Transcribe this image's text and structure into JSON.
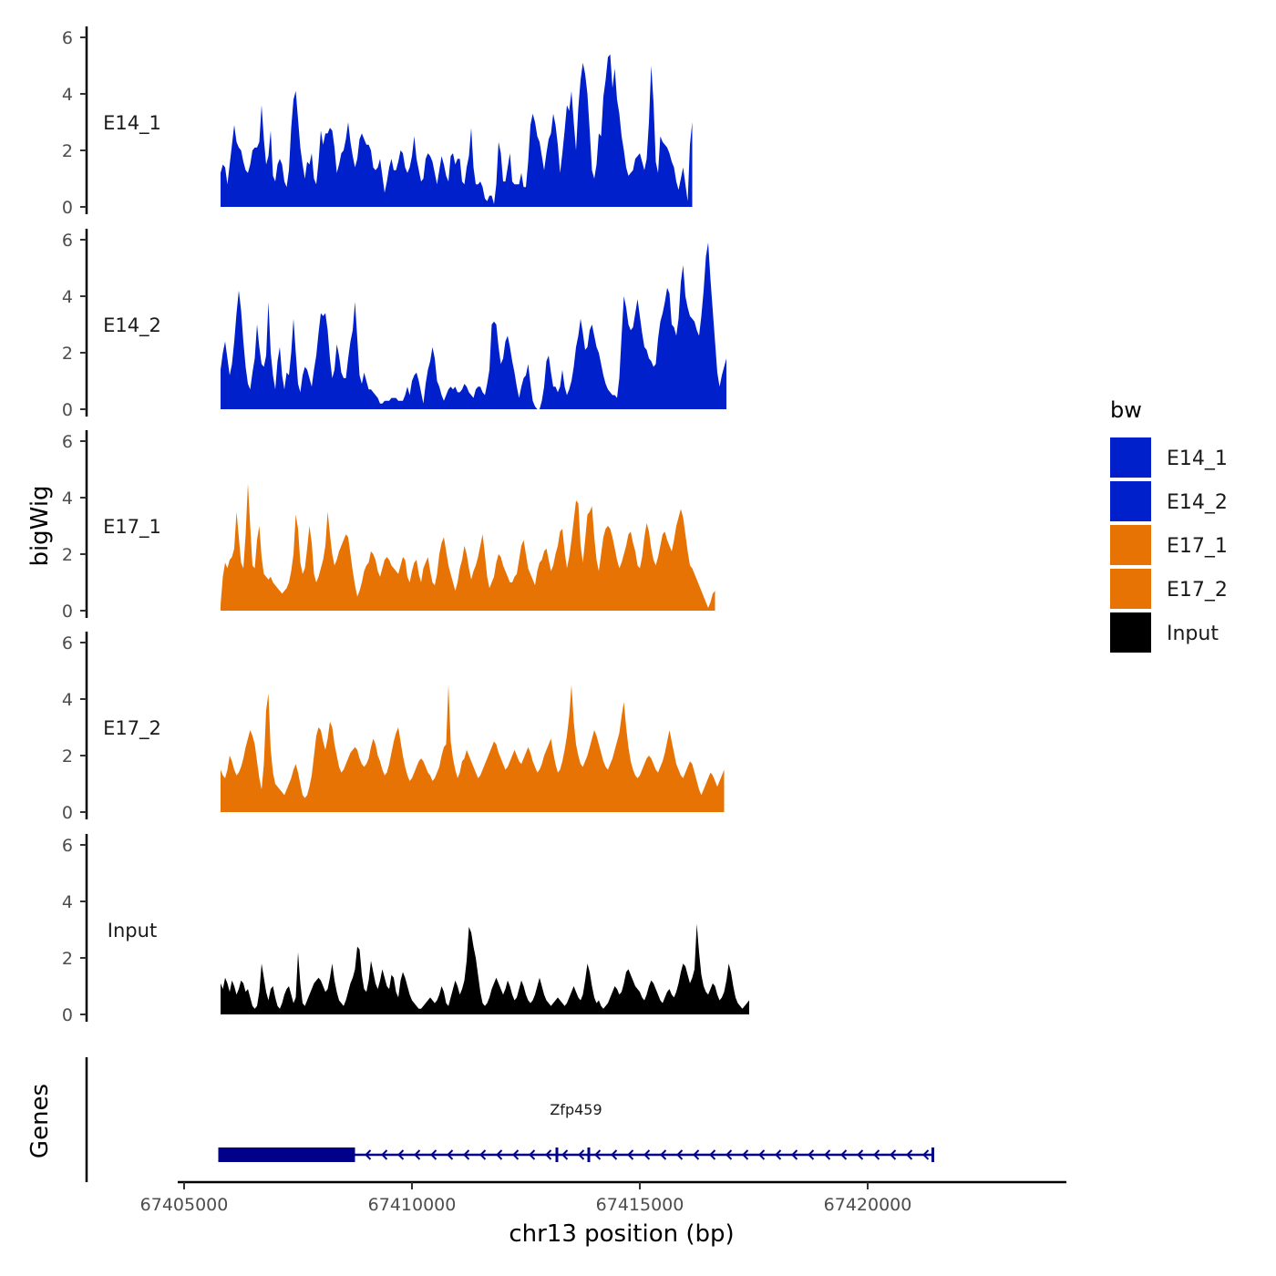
{
  "chart_data": {
    "type": "area",
    "ylabel": "bigWig",
    "xlabel": "chr13 position (bp)",
    "ylim": [
      0,
      6
    ],
    "y_ticks": [
      "0",
      "2",
      "4",
      "6"
    ],
    "xlim": [
      67404800,
      67424300
    ],
    "x_ticks": [
      {
        "value": 67405000,
        "label": "67405000"
      },
      {
        "value": 67410000,
        "label": "67410000"
      },
      {
        "value": 67415000,
        "label": "67415000"
      },
      {
        "value": 67420000,
        "label": "67420000"
      }
    ],
    "x_start": 67405800,
    "x_step": 50,
    "legend": {
      "title": "bw",
      "position": "right",
      "entries": [
        {
          "label": "E14_1",
          "color": "#0020CC"
        },
        {
          "label": "E14_2",
          "color": "#0020CC"
        },
        {
          "label": "E17_1",
          "color": "#E87305"
        },
        {
          "label": "E17_2",
          "color": "#E87305"
        },
        {
          "label": "Input",
          "color": "#000000"
        }
      ]
    },
    "series": [
      {
        "name": "E14_1",
        "color": "#0020CC",
        "values": [
          1.2,
          1.5,
          1.4,
          0.8,
          1.5,
          2.2,
          2.9,
          2.3,
          2.1,
          2.0,
          1.6,
          1.3,
          1.2,
          1.5,
          2.0,
          2.1,
          2.1,
          2.3,
          3.6,
          2.4,
          1.5,
          1.8,
          2.7,
          1.1,
          0.9,
          1.5,
          1.7,
          1.5,
          0.9,
          0.7,
          1.3,
          2.8,
          3.8,
          4.1,
          3.1,
          2.1,
          1.5,
          1.0,
          1.6,
          1.5,
          1.9,
          1.0,
          0.8,
          1.6,
          2.7,
          2.2,
          2.6,
          2.6,
          2.8,
          2.7,
          2.1,
          1.2,
          1.5,
          1.9,
          2.0,
          2.4,
          3.0,
          2.3,
          1.8,
          1.4,
          1.7,
          2.4,
          2.6,
          2.4,
          2.2,
          2.2,
          2.0,
          1.4,
          1.3,
          1.4,
          1.7,
          1.1,
          0.5,
          0.9,
          1.4,
          1.7,
          1.3,
          1.3,
          1.6,
          2.0,
          1.9,
          1.4,
          1.2,
          1.4,
          1.8,
          2.5,
          1.7,
          1.3,
          0.9,
          1.0,
          1.7,
          1.9,
          1.8,
          1.6,
          1.2,
          0.8,
          1.3,
          1.8,
          1.5,
          1.1,
          0.9,
          1.8,
          1.9,
          1.5,
          1.7,
          1.7,
          0.9,
          0.8,
          1.4,
          1.8,
          2.8,
          1.4,
          0.8,
          0.8,
          0.9,
          0.7,
          0.3,
          0.2,
          0.4,
          0.4,
          0.1,
          0.8,
          2.3,
          1.9,
          0.9,
          0.9,
          1.4,
          1.9,
          0.9,
          0.8,
          0.8,
          0.8,
          1.2,
          0.7,
          0.7,
          1.6,
          2.9,
          3.3,
          3.0,
          2.5,
          2.3,
          1.8,
          1.3,
          1.9,
          2.4,
          2.6,
          3.3,
          2.9,
          2.2,
          1.2,
          1.9,
          2.7,
          3.6,
          3.4,
          4.1,
          3.0,
          2.0,
          3.5,
          4.5,
          5.1,
          4.7,
          4.0,
          2.7,
          1.3,
          1.0,
          1.5,
          2.6,
          2.5,
          3.9,
          4.5,
          5.3,
          5.4,
          4.2,
          4.9,
          3.8,
          3.3,
          2.5,
          2.0,
          1.4,
          1.1,
          1.2,
          1.3,
          1.7,
          1.8,
          1.9,
          1.6,
          1.3,
          1.7,
          3.0,
          5.0,
          3.7,
          1.6,
          1.2,
          2.5,
          2.3,
          2.2,
          2.1,
          1.9,
          1.6,
          1.4,
          0.9,
          0.6,
          1.0,
          1.4,
          0.8,
          0.2,
          2.2,
          3.0
        ]
      },
      {
        "name": "E14_2",
        "color": "#0020CC",
        "values": [
          1.4,
          2.0,
          2.4,
          1.8,
          1.2,
          1.6,
          2.4,
          3.4,
          4.2,
          3.5,
          2.4,
          1.5,
          0.9,
          0.7,
          1.3,
          1.8,
          3.0,
          2.2,
          1.6,
          1.5,
          1.9,
          3.8,
          2.0,
          1.2,
          0.7,
          1.7,
          2.2,
          1.2,
          0.7,
          1.3,
          1.2,
          2.0,
          3.2,
          2.0,
          0.9,
          0.6,
          1.2,
          1.5,
          1.4,
          1.1,
          0.8,
          1.4,
          1.9,
          2.7,
          3.4,
          3.3,
          3.4,
          2.8,
          1.8,
          1.1,
          1.4,
          2.3,
          1.9,
          1.3,
          1.1,
          1.1,
          1.8,
          2.4,
          2.8,
          3.8,
          2.5,
          1.2,
          0.9,
          1.3,
          1.0,
          0.7,
          0.7,
          0.6,
          0.5,
          0.4,
          0.2,
          0.2,
          0.3,
          0.3,
          0.3,
          0.4,
          0.4,
          0.4,
          0.3,
          0.3,
          0.3,
          0.5,
          0.8,
          0.5,
          1.0,
          1.2,
          1.3,
          1.0,
          0.6,
          0.2,
          0.9,
          1.4,
          1.7,
          2.2,
          1.8,
          1.0,
          0.8,
          0.5,
          0.3,
          0.5,
          0.7,
          0.8,
          0.7,
          0.8,
          0.6,
          0.6,
          0.7,
          0.9,
          0.8,
          0.6,
          0.5,
          0.4,
          0.7,
          0.8,
          0.8,
          0.6,
          0.5,
          0.9,
          1.4,
          3.0,
          3.1,
          3.0,
          2.2,
          1.6,
          1.8,
          2.4,
          2.6,
          2.2,
          1.7,
          1.3,
          0.8,
          0.4,
          0.8,
          1.1,
          1.2,
          1.6,
          0.9,
          0.3,
          0.1,
          0.0,
          0.0,
          0.3,
          0.8,
          1.7,
          1.9,
          1.3,
          0.8,
          0.8,
          0.6,
          0.8,
          1.4,
          0.8,
          0.5,
          0.7,
          1.0,
          1.5,
          2.2,
          2.6,
          3.2,
          2.7,
          2.1,
          2.2,
          2.8,
          3.0,
          2.6,
          2.2,
          2.0,
          1.6,
          1.2,
          0.9,
          0.7,
          0.6,
          0.5,
          0.5,
          0.4,
          1.1,
          2.6,
          4.0,
          3.6,
          3.0,
          2.8,
          2.9,
          3.4,
          3.9,
          3.3,
          2.7,
          2.2,
          2.1,
          1.8,
          1.7,
          1.5,
          1.6,
          2.5,
          3.1,
          3.4,
          3.8,
          4.3,
          4.1,
          3.0,
          2.9,
          2.6,
          3.2,
          4.5,
          5.1,
          4.0,
          3.6,
          3.3,
          3.2,
          3.1,
          2.8,
          2.6,
          3.3,
          4.2,
          5.4,
          5.9,
          4.6,
          3.5,
          2.4,
          1.3,
          0.8,
          1.2,
          1.5,
          1.8
        ]
      },
      {
        "name": "E17_1",
        "color": "#E87305",
        "values": [
          0.2,
          1.2,
          1.7,
          1.5,
          1.8,
          1.9,
          2.2,
          3.5,
          2.6,
          1.7,
          1.5,
          2.7,
          4.5,
          3.0,
          1.6,
          1.5,
          2.5,
          3.0,
          1.9,
          1.3,
          1.2,
          1.1,
          1.2,
          1.0,
          0.9,
          0.8,
          0.7,
          0.6,
          0.7,
          0.8,
          1.0,
          1.4,
          2.0,
          3.4,
          2.9,
          1.7,
          1.3,
          1.5,
          2.2,
          3.0,
          2.4,
          1.3,
          1.0,
          1.2,
          1.5,
          1.8,
          2.3,
          3.5,
          2.7,
          2.0,
          1.6,
          1.8,
          2.1,
          2.3,
          2.5,
          2.7,
          2.6,
          2.0,
          1.4,
          0.9,
          0.5,
          0.7,
          1.0,
          1.4,
          1.6,
          1.7,
          2.1,
          2.0,
          1.8,
          1.4,
          1.2,
          1.5,
          1.8,
          1.9,
          1.8,
          1.6,
          1.5,
          1.4,
          1.3,
          1.6,
          1.9,
          1.8,
          1.2,
          1.0,
          1.4,
          1.7,
          1.8,
          1.3,
          1.0,
          1.5,
          1.7,
          1.9,
          1.4,
          1.0,
          0.9,
          1.3,
          2.0,
          2.4,
          2.6,
          2.1,
          1.6,
          1.3,
          1.0,
          0.7,
          1.0,
          1.5,
          1.8,
          2.3,
          2.0,
          1.5,
          1.1,
          1.4,
          1.6,
          1.9,
          2.3,
          2.7,
          2.0,
          1.2,
          0.8,
          1.0,
          1.2,
          1.7,
          2.0,
          1.9,
          1.6,
          1.4,
          1.2,
          1.0,
          1.0,
          1.2,
          1.3,
          1.8,
          2.3,
          2.5,
          2.0,
          1.5,
          1.3,
          1.1,
          0.9,
          1.4,
          1.7,
          1.8,
          2.1,
          2.2,
          1.8,
          1.4,
          1.6,
          2.0,
          2.3,
          2.8,
          2.9,
          2.1,
          1.5,
          1.9,
          2.5,
          3.2,
          3.9,
          3.8,
          2.3,
          1.7,
          2.5,
          3.4,
          3.5,
          3.7,
          2.6,
          1.8,
          1.4,
          2.0,
          2.6,
          2.9,
          3.0,
          2.9,
          2.6,
          2.2,
          1.8,
          1.5,
          1.7,
          2.0,
          2.3,
          2.7,
          2.8,
          2.4,
          2.1,
          1.6,
          1.5,
          1.9,
          2.6,
          3.1,
          2.8,
          2.2,
          1.8,
          1.6,
          1.9,
          2.3,
          2.7,
          2.8,
          2.5,
          2.3,
          2.1,
          2.5,
          3.0,
          3.3,
          3.6,
          3.3,
          2.7,
          2.1,
          1.6,
          1.5,
          1.3,
          1.1,
          0.9,
          0.7,
          0.5,
          0.3,
          0.1,
          0.3,
          0.6,
          0.7
        ]
      },
      {
        "name": "E17_2",
        "color": "#E87305",
        "values": [
          1.5,
          1.3,
          1.2,
          1.5,
          2.0,
          1.8,
          1.5,
          1.3,
          1.4,
          1.6,
          1.9,
          2.3,
          2.6,
          2.9,
          2.7,
          2.4,
          1.8,
          1.2,
          0.8,
          1.7,
          3.6,
          4.2,
          2.2,
          1.4,
          1.0,
          0.9,
          0.8,
          0.7,
          0.6,
          0.8,
          1.0,
          1.2,
          1.5,
          1.7,
          1.4,
          1.0,
          0.6,
          0.5,
          0.6,
          0.9,
          1.3,
          2.0,
          2.7,
          3.0,
          2.9,
          2.5,
          2.2,
          2.6,
          3.2,
          3.0,
          2.4,
          2.0,
          1.6,
          1.4,
          1.5,
          1.7,
          1.9,
          2.1,
          2.2,
          2.3,
          2.2,
          1.9,
          1.7,
          1.6,
          1.7,
          1.9,
          2.3,
          2.6,
          2.4,
          2.0,
          1.8,
          1.5,
          1.3,
          1.4,
          1.7,
          2.1,
          2.5,
          2.8,
          3.0,
          2.5,
          2.0,
          1.6,
          1.3,
          1.1,
          1.2,
          1.4,
          1.6,
          1.8,
          1.9,
          1.8,
          1.6,
          1.4,
          1.3,
          1.1,
          1.2,
          1.4,
          1.6,
          2.0,
          2.3,
          2.4,
          4.5,
          2.5,
          1.9,
          1.5,
          1.2,
          1.4,
          1.8,
          1.9,
          2.2,
          2.0,
          1.8,
          1.6,
          1.4,
          1.2,
          1.3,
          1.5,
          1.7,
          1.9,
          2.1,
          2.3,
          2.5,
          2.4,
          2.1,
          1.9,
          1.7,
          1.5,
          1.6,
          1.8,
          2.0,
          2.2,
          2.0,
          1.8,
          1.7,
          1.9,
          2.1,
          2.3,
          2.1,
          1.8,
          1.6,
          1.4,
          1.5,
          1.7,
          2.0,
          2.2,
          2.4,
          2.6,
          2.1,
          1.7,
          1.4,
          1.5,
          1.8,
          2.2,
          2.7,
          3.4,
          4.5,
          3.2,
          2.4,
          2.0,
          1.7,
          1.6,
          1.8,
          2.0,
          2.3,
          2.6,
          2.9,
          2.7,
          2.4,
          2.1,
          1.8,
          1.6,
          1.5,
          1.7,
          1.9,
          2.2,
          2.5,
          2.8,
          3.4,
          3.9,
          3.0,
          2.3,
          1.8,
          1.5,
          1.3,
          1.2,
          1.3,
          1.5,
          1.7,
          1.9,
          2.0,
          1.9,
          1.7,
          1.5,
          1.4,
          1.6,
          1.8,
          2.1,
          2.5,
          2.9,
          2.5,
          2.1,
          1.7,
          1.5,
          1.3,
          1.2,
          1.4,
          1.6,
          1.8,
          1.7,
          1.4,
          1.1,
          0.8,
          0.6,
          0.8,
          1.0,
          1.2,
          1.4,
          1.3,
          1.1,
          0.9,
          1.1,
          1.3,
          1.5
        ]
      },
      {
        "name": "Input",
        "color": "#000000",
        "values": [
          1.1,
          0.9,
          1.3,
          1.1,
          0.8,
          1.2,
          1.0,
          0.7,
          0.9,
          1.2,
          1.1,
          0.8,
          0.9,
          0.6,
          0.3,
          0.2,
          0.3,
          0.8,
          1.8,
          1.3,
          0.8,
          0.5,
          0.9,
          1.0,
          0.6,
          0.3,
          0.2,
          0.4,
          0.7,
          0.9,
          1.0,
          0.7,
          0.4,
          0.6,
          2.2,
          1.1,
          0.4,
          0.3,
          0.5,
          0.7,
          0.9,
          1.1,
          1.2,
          1.3,
          1.2,
          1.0,
          0.8,
          0.9,
          1.3,
          1.8,
          1.2,
          0.8,
          0.5,
          0.4,
          0.3,
          0.5,
          0.8,
          1.1,
          1.3,
          1.6,
          2.4,
          2.3,
          1.4,
          0.9,
          0.8,
          1.2,
          1.9,
          1.5,
          1.1,
          0.9,
          1.2,
          1.6,
          1.3,
          1.0,
          0.9,
          1.4,
          1.3,
          0.8,
          0.6,
          1.2,
          1.5,
          1.3,
          1.0,
          0.7,
          0.5,
          0.4,
          0.3,
          0.2,
          0.2,
          0.3,
          0.4,
          0.5,
          0.6,
          0.5,
          0.4,
          0.5,
          0.7,
          1.0,
          0.8,
          0.4,
          0.3,
          0.6,
          0.9,
          1.2,
          1.0,
          0.7,
          0.9,
          1.2,
          1.9,
          3.1,
          2.9,
          2.4,
          2.0,
          1.4,
          0.8,
          0.4,
          0.3,
          0.4,
          0.6,
          0.9,
          1.1,
          1.3,
          1.1,
          0.9,
          0.7,
          0.9,
          1.2,
          1.0,
          0.7,
          0.5,
          0.6,
          0.9,
          1.2,
          1.0,
          0.7,
          0.5,
          0.4,
          0.5,
          0.7,
          1.0,
          1.3,
          1.0,
          0.7,
          0.5,
          0.4,
          0.3,
          0.4,
          0.5,
          0.6,
          0.5,
          0.4,
          0.3,
          0.4,
          0.6,
          0.8,
          1.0,
          0.8,
          0.6,
          0.5,
          0.7,
          1.2,
          1.8,
          1.5,
          1.0,
          0.6,
          0.4,
          0.5,
          0.3,
          0.2,
          0.3,
          0.4,
          0.6,
          0.8,
          1.0,
          0.9,
          0.7,
          0.8,
          1.1,
          1.5,
          1.6,
          1.4,
          1.2,
          1.0,
          0.9,
          0.8,
          0.6,
          0.5,
          0.7,
          1.0,
          1.2,
          1.1,
          0.9,
          0.7,
          0.5,
          0.4,
          0.6,
          0.8,
          0.9,
          0.7,
          0.6,
          0.8,
          1.1,
          1.5,
          1.8,
          1.7,
          1.4,
          1.1,
          1.3,
          1.6,
          3.2,
          2.2,
          1.4,
          1.0,
          0.8,
          0.7,
          0.9,
          1.1,
          1.0,
          0.7,
          0.5,
          0.6,
          0.8,
          1.2,
          1.8,
          1.5,
          1.0,
          0.6,
          0.4,
          0.3,
          0.2,
          0.3,
          0.4,
          0.5
        ]
      }
    ],
    "gene": {
      "name": "Zfp459",
      "strand": "-",
      "track_label": "Genes",
      "color": "#00008B",
      "start": 67405750,
      "end": 67421450,
      "thick_start": 67405750,
      "thick_end": 67408750,
      "exons": [
        {
          "start": 67405750,
          "end": 67408750
        },
        {
          "start": 67413150,
          "end": 67413200
        },
        {
          "start": 67413850,
          "end": 67413900
        },
        {
          "start": 67421400,
          "end": 67421450
        }
      ]
    }
  }
}
